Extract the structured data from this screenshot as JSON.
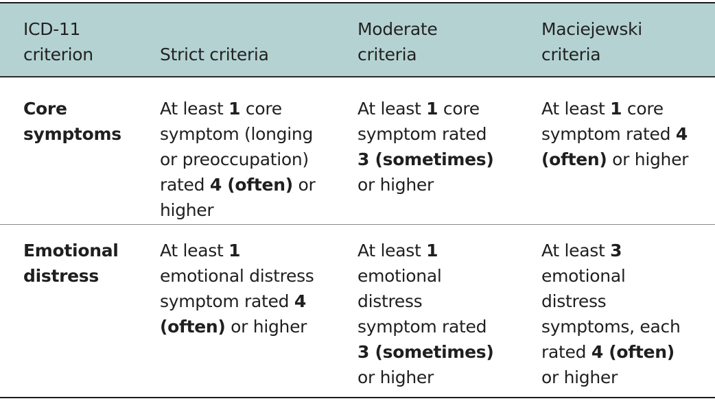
{
  "table": {
    "headers": [
      {
        "lines": [
          "ICD-11",
          "criterion"
        ]
      },
      {
        "lines": [
          "Strict criteria"
        ]
      },
      {
        "lines": [
          "Moderate",
          "criteria"
        ]
      },
      {
        "lines": [
          "Maciejewski",
          "criteria"
        ]
      }
    ],
    "rows": [
      {
        "criterion": [
          "Core",
          "symptoms"
        ],
        "strict": {
          "l1_a": "At least ",
          "l1_b": "1",
          "l1_c": " core",
          "l2": "symptom (longing",
          "l3": "or preoccupation)",
          "l4_a": "rated ",
          "l4_b": "4 (often)",
          "l4_c": " or",
          "l5": "higher"
        },
        "moderate": {
          "l1_a": "At least ",
          "l1_b": "1",
          "l1_c": " core",
          "l2": "symptom rated",
          "l3_b": "3 (sometimes)",
          "l4": "or higher"
        },
        "maciejewski": {
          "l1_a": "At least ",
          "l1_b": "1",
          "l1_c": " core",
          "l2_a": "symptom rated ",
          "l2_b": "4",
          "l3_b": "(often)",
          "l3_c": " or higher"
        }
      },
      {
        "criterion": [
          "Emotional",
          "distress"
        ],
        "strict": {
          "l1_a": "At least ",
          "l1_b": "1",
          "l2": "emotional distress",
          "l3_a": "symptom rated ",
          "l3_b": "4",
          "l4_b": "(often)",
          "l4_c": " or higher"
        },
        "moderate": {
          "l1_a": "At least ",
          "l1_b": "1",
          "l2": "emotional",
          "l3": "distress",
          "l4": "symptom rated",
          "l5_b": "3 (sometimes)",
          "l6": "or higher"
        },
        "maciejewski": {
          "l1_a": "At least ",
          "l1_b": "3",
          "l2": "emotional",
          "l3": "distress",
          "l4": "symptoms, each",
          "l5_a": "rated ",
          "l5_b": "4 (often)",
          "l6": "or higher"
        }
      }
    ]
  }
}
